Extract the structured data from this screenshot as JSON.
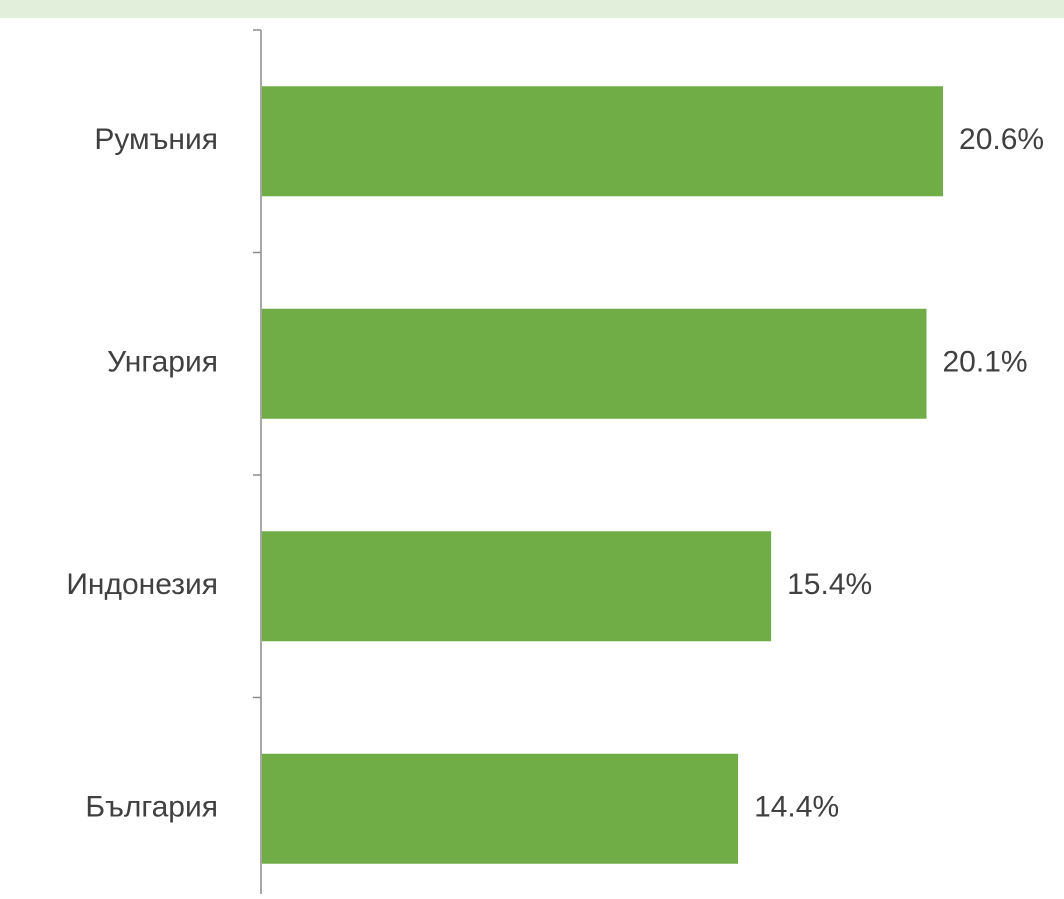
{
  "chart_data": {
    "type": "barh",
    "categories": [
      "Румъния",
      "Унгария",
      "Индонезия",
      "България"
    ],
    "values": [
      20.6,
      20.1,
      15.4,
      14.4
    ],
    "value_labels": [
      "20.6%",
      "20.1%",
      "15.4%",
      "14.4%"
    ],
    "color": "#70ad47"
  }
}
